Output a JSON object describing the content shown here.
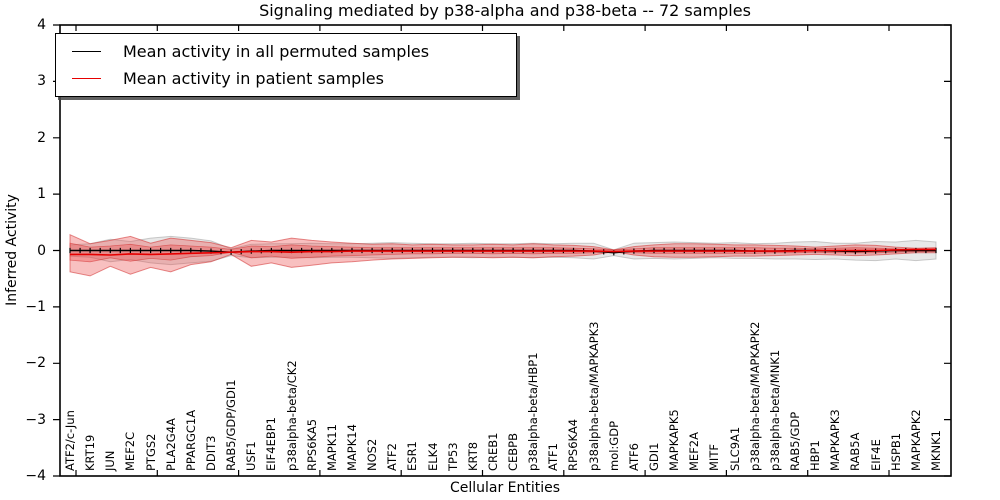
{
  "chart_data": {
    "type": "line",
    "title": "Signaling mediated by p38-alpha and p38-beta -- 72 samples",
    "xlabel": "Cellular Entities",
    "ylabel": "Inferred Activity",
    "ylim": [
      -4,
      4
    ],
    "y_tick_labels": [
      "4",
      "3",
      "2",
      "1",
      "0",
      "−1",
      "−2",
      "−3",
      "−4"
    ],
    "grid": false,
    "legend": {
      "position": "upper left",
      "entries": [
        {
          "name": "Mean activity in all permuted samples",
          "color": "#000000"
        },
        {
          "name": "Mean activity in patient samples",
          "color": "#e60000"
        }
      ]
    },
    "categories": [
      "ATF2/c-Jun",
      "KRT19",
      "JUN",
      "MEF2C",
      "PTGS2",
      "PLA2G4A",
      "PPARGC1A",
      "DDIT3",
      "RAB5/GDP/GDI1",
      "USF1",
      "EIF4EBP1",
      "p38alpha-beta/CK2",
      "RPS6KA5",
      "MAPK11",
      "MAPK14",
      "NOS2",
      "ATF2",
      "ESR1",
      "ELK4",
      "TP53",
      "KRT8",
      "CREB1",
      "CEBPB",
      "p38alpha-beta/HBP1",
      "ATF1",
      "RPS6KA4",
      "p38alpha-beta/MAPKAPK3",
      "mol:GDP",
      "ATF6",
      "GDI1",
      "MAPKAPK5",
      "MEF2A",
      "MITF",
      "SLC9A1",
      "p38alpha-beta/MAPKAPK2",
      "p38alpha-beta/MNK1",
      "RAB5/GDP",
      "HBP1",
      "MAPKAPK3",
      "RAB5A",
      "EIF4E",
      "HSPB1",
      "MAPKAPK2",
      "MKNK1"
    ],
    "series": [
      {
        "name": "Mean activity in all permuted samples",
        "line_color": "#000000",
        "band_fill": "rgba(125,125,125,0.18)",
        "band_edge": "rgba(125,125,125,0.38)",
        "values": [
          0,
          0,
          0,
          0,
          0,
          0,
          0,
          -0.01,
          -0.03,
          -0.01,
          0,
          0,
          0,
          0,
          0,
          0,
          0,
          0,
          0,
          0,
          0,
          0,
          0,
          0,
          0,
          0,
          -0.01,
          -0.04,
          -0.01,
          0,
          0,
          0,
          0,
          0,
          -0.01,
          -0.01,
          0,
          0,
          -0.01,
          -0.02,
          -0.01,
          0,
          0,
          0
        ],
        "band_halfwidth": [
          0.1,
          0.12,
          0.2,
          0.16,
          0.22,
          0.25,
          0.22,
          0.18,
          0.06,
          0.12,
          0.12,
          0.12,
          0.13,
          0.12,
          0.12,
          0.13,
          0.14,
          0.13,
          0.12,
          0.12,
          0.13,
          0.12,
          0.12,
          0.13,
          0.12,
          0.13,
          0.14,
          0.05,
          0.14,
          0.14,
          0.15,
          0.14,
          0.13,
          0.14,
          0.13,
          0.14,
          0.15,
          0.16,
          0.14,
          0.15,
          0.17,
          0.15,
          0.18,
          0.15
        ]
      },
      {
        "name": "Mean activity in patient samples",
        "line_color": "#e60000",
        "band_fill": "rgba(235,65,65,0.33)",
        "band_edge": "rgba(210,45,45,0.55)",
        "values": [
          -0.07,
          -0.07,
          -0.08,
          -0.06,
          -0.07,
          -0.06,
          -0.05,
          -0.04,
          -0.03,
          -0.02,
          -0.02,
          -0.03,
          -0.02,
          -0.02,
          -0.01,
          -0.01,
          -0.01,
          -0.01,
          -0.01,
          -0.01,
          -0.01,
          -0.01,
          -0.01,
          -0.01,
          -0.01,
          -0.01,
          -0.01,
          -0.02,
          -0.01,
          -0.01,
          -0.01,
          -0.01,
          -0.01,
          -0.01,
          -0.01,
          -0.01,
          -0.01,
          0,
          0,
          0,
          0,
          0.01,
          0.02,
          0.02
        ],
        "band_outer_upper": [
          0.28,
          0.12,
          0.18,
          0.25,
          0.13,
          0.22,
          0.18,
          0.14,
          0.05,
          0.18,
          0.15,
          0.22,
          0.18,
          0.15,
          0.13,
          0.11,
          0.12,
          0.1,
          0.11,
          0.1,
          0.1,
          0.11,
          0.1,
          0.12,
          0.1,
          0.09,
          0.07,
          0.01,
          0.07,
          0.1,
          0.12,
          0.12,
          0.11,
          0.1,
          0.1,
          0.09,
          0.08,
          0.06,
          0.08,
          0.1,
          0.09,
          0.06,
          0.04,
          0.05
        ],
        "band_outer_lower": [
          -0.38,
          -0.45,
          -0.28,
          -0.42,
          -0.3,
          -0.38,
          -0.25,
          -0.2,
          -0.07,
          -0.28,
          -0.22,
          -0.3,
          -0.26,
          -0.22,
          -0.2,
          -0.17,
          -0.15,
          -0.14,
          -0.13,
          -0.12,
          -0.12,
          -0.13,
          -0.12,
          -0.13,
          -0.11,
          -0.1,
          -0.08,
          -0.02,
          -0.08,
          -0.11,
          -0.12,
          -0.12,
          -0.11,
          -0.1,
          -0.1,
          -0.09,
          -0.08,
          -0.07,
          -0.08,
          -0.09,
          -0.08,
          -0.06,
          -0.04,
          -0.04
        ],
        "band_inner_upper": [
          0.13,
          0.06,
          0.08,
          0.11,
          0.06,
          0.1,
          0.08,
          0.06,
          0.02,
          0.08,
          0.07,
          0.1,
          0.08,
          0.07,
          0.06,
          0.05,
          0.05,
          0.05,
          0.05,
          0.05,
          0.05,
          0.05,
          0.05,
          0.05,
          0.05,
          0.04,
          0.03,
          0.01,
          0.03,
          0.05,
          0.05,
          0.05,
          0.05,
          0.05,
          0.05,
          0.04,
          0.04,
          0.03,
          0.04,
          0.05,
          0.04,
          0.03,
          0.02,
          0.02
        ],
        "band_inner_lower": [
          -0.17,
          -0.2,
          -0.13,
          -0.19,
          -0.14,
          -0.17,
          -0.11,
          -0.09,
          -0.03,
          -0.13,
          -0.1,
          -0.14,
          -0.12,
          -0.1,
          -0.09,
          -0.08,
          -0.07,
          -0.06,
          -0.06,
          -0.05,
          -0.05,
          -0.06,
          -0.05,
          -0.06,
          -0.05,
          -0.05,
          -0.04,
          -0.01,
          -0.04,
          -0.05,
          -0.05,
          -0.05,
          -0.05,
          -0.05,
          -0.05,
          -0.04,
          -0.04,
          -0.03,
          -0.04,
          -0.04,
          -0.04,
          -0.03,
          -0.02,
          -0.02
        ]
      }
    ]
  }
}
